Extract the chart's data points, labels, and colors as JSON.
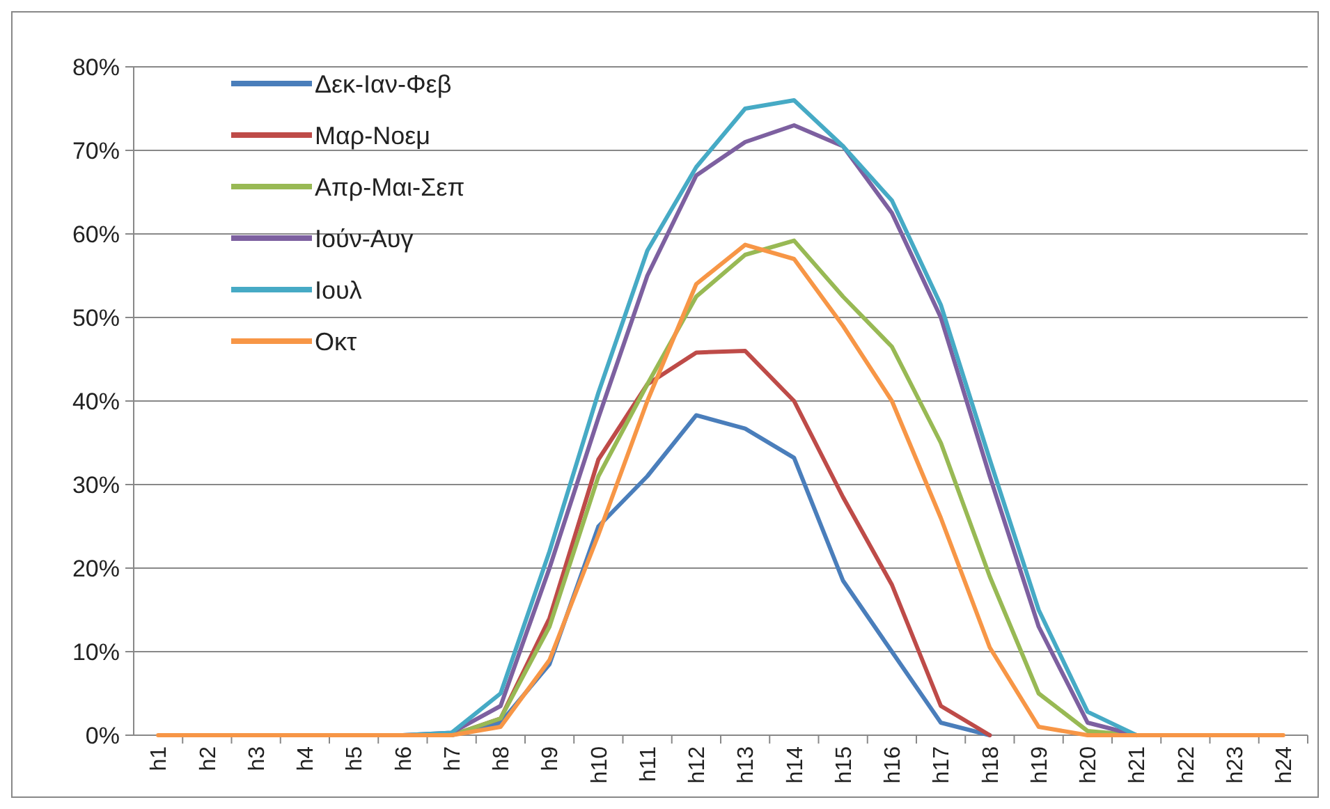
{
  "chart_data": {
    "type": "line",
    "categories": [
      "h1",
      "h2",
      "h3",
      "h4",
      "h5",
      "h6",
      "h7",
      "h8",
      "h9",
      "h10",
      "h11",
      "h12",
      "h13",
      "h14",
      "h15",
      "h16",
      "h17",
      "h18",
      "h19",
      "h20",
      "h21",
      "h22",
      "h23",
      "h24"
    ],
    "series": [
      {
        "name": "Δεκ-Ιαν-Φεβ",
        "color": "#4a7ebb",
        "values": [
          null,
          null,
          null,
          null,
          null,
          null,
          0,
          1.5,
          8.5,
          25,
          31,
          38.3,
          36.7,
          33.2,
          18.5,
          10,
          1.5,
          0,
          null,
          null,
          null,
          null,
          null,
          null
        ]
      },
      {
        "name": "Μαρ-Νοεμ",
        "color": "#be4b48",
        "values": [
          null,
          null,
          null,
          null,
          null,
          null,
          0,
          2,
          14,
          33,
          42,
          45.8,
          46,
          40,
          28.5,
          18,
          3.5,
          0,
          null,
          null,
          null,
          null,
          null,
          null
        ]
      },
      {
        "name": "Απρ-Μαι-Σεπ",
        "color": "#98b954",
        "values": [
          null,
          null,
          null,
          null,
          null,
          null,
          0,
          2,
          13,
          31,
          42,
          52.5,
          57.5,
          59.2,
          52.5,
          46.5,
          35,
          19,
          5,
          0.5,
          0,
          null,
          null,
          null
        ]
      },
      {
        "name": "Ιούν-Αυγ",
        "color": "#7d60a0",
        "values": [
          null,
          null,
          null,
          null,
          null,
          0,
          0.3,
          3.5,
          20,
          38,
          55,
          67,
          71,
          73,
          70.5,
          62.5,
          50,
          31,
          13,
          1.5,
          0,
          null,
          null,
          null
        ]
      },
      {
        "name": "Ιουλ",
        "color": "#46aac5",
        "values": [
          null,
          null,
          null,
          null,
          null,
          0,
          0.3,
          5,
          22,
          41,
          58,
          68,
          75,
          76,
          70.5,
          64,
          51.5,
          33,
          15,
          2.8,
          0,
          null,
          null,
          null
        ]
      },
      {
        "name": "Οκτ",
        "color": "#f79646",
        "values": [
          0,
          0,
          0,
          0,
          0,
          0,
          0,
          1,
          9,
          24,
          40,
          54,
          58.7,
          57,
          49,
          40,
          26,
          10.5,
          1,
          0,
          0,
          0,
          0,
          0
        ]
      }
    ],
    "ylim": [
      0,
      80
    ],
    "yticks": [
      {
        "value": 0,
        "label": "0%"
      },
      {
        "value": 10,
        "label": "10%"
      },
      {
        "value": 20,
        "label": "20%"
      },
      {
        "value": 30,
        "label": "30%"
      },
      {
        "value": 40,
        "label": "40%"
      },
      {
        "value": 50,
        "label": "50%"
      },
      {
        "value": 60,
        "label": "60%"
      },
      {
        "value": 70,
        "label": "70%"
      },
      {
        "value": 80,
        "label": "80%"
      }
    ],
    "grid": "y",
    "legend": "top left",
    "marker": "none",
    "line_style": "solid"
  }
}
